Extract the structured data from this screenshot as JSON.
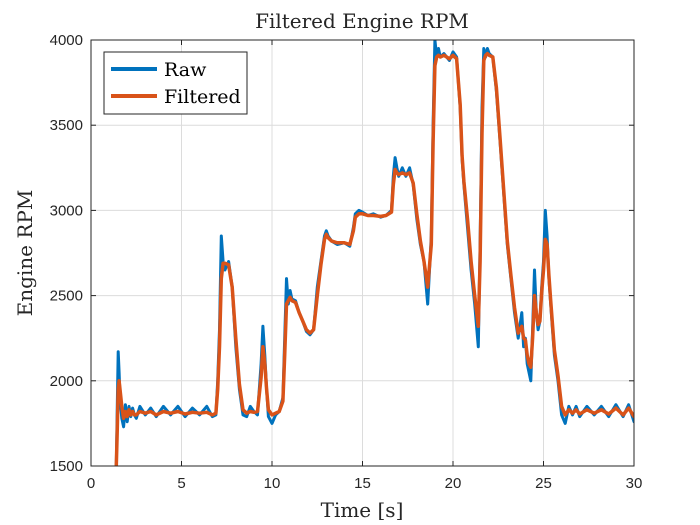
{
  "chart_data": {
    "type": "line",
    "title": "Filtered Engine RPM",
    "xlabel": "Time [s]",
    "ylabel": "Engine RPM",
    "xlim": [
      0,
      30
    ],
    "ylim": [
      1500,
      4000
    ],
    "xticks": [
      0,
      5,
      10,
      15,
      20,
      25,
      30
    ],
    "yticks": [
      1500,
      2000,
      2500,
      3000,
      3500,
      4000
    ],
    "grid": true,
    "legend_position": "top-left",
    "series": [
      {
        "name": "Raw",
        "color": "#0072BD",
        "x": [
          1.4,
          1.45,
          1.5,
          1.55,
          1.6,
          1.7,
          1.8,
          1.9,
          2.0,
          2.1,
          2.2,
          2.3,
          2.4,
          2.5,
          2.7,
          3.0,
          3.3,
          3.6,
          4.0,
          4.4,
          4.8,
          5.2,
          5.6,
          6.0,
          6.4,
          6.7,
          6.9,
          7.0,
          7.1,
          7.2,
          7.3,
          7.4,
          7.6,
          7.8,
          8.0,
          8.2,
          8.4,
          8.6,
          8.8,
          9.0,
          9.2,
          9.4,
          9.5,
          9.6,
          9.7,
          9.8,
          10.0,
          10.2,
          10.4,
          10.6,
          10.7,
          10.8,
          10.9,
          11.0,
          11.1,
          11.3,
          11.5,
          11.7,
          11.9,
          12.1,
          12.3,
          12.5,
          12.7,
          12.9,
          13.0,
          13.1,
          13.3,
          13.6,
          14.0,
          14.3,
          14.5,
          14.6,
          14.8,
          15.0,
          15.3,
          15.6,
          16.0,
          16.3,
          16.6,
          16.7,
          16.8,
          16.9,
          17.0,
          17.2,
          17.4,
          17.6,
          17.8,
          18.0,
          18.2,
          18.4,
          18.6,
          18.8,
          18.9,
          19.0,
          19.1,
          19.2,
          19.3,
          19.5,
          19.8,
          20.0,
          20.2,
          20.4,
          20.5,
          20.6,
          20.8,
          21.0,
          21.2,
          21.4,
          21.5,
          21.6,
          21.7,
          21.8,
          21.9,
          22.0,
          22.2,
          22.4,
          22.6,
          22.8,
          23.0,
          23.2,
          23.4,
          23.6,
          23.8,
          23.9,
          24.0,
          24.1,
          24.2,
          24.3,
          24.4,
          24.5,
          24.6,
          24.7,
          24.8,
          24.9,
          25.0,
          25.1,
          25.2,
          25.3,
          25.4,
          25.5,
          25.6,
          25.8,
          26.0,
          26.2,
          26.4,
          26.6,
          26.8,
          27.0,
          27.4,
          27.8,
          28.2,
          28.6,
          29.0,
          29.4,
          29.7,
          30.0
        ],
        "y": [
          1500,
          1820,
          2170,
          2050,
          1900,
          1780,
          1730,
          1860,
          1760,
          1850,
          1790,
          1840,
          1800,
          1780,
          1850,
          1800,
          1840,
          1790,
          1850,
          1800,
          1850,
          1790,
          1840,
          1800,
          1850,
          1790,
          1800,
          2000,
          2300,
          2850,
          2700,
          2650,
          2700,
          2550,
          2200,
          1950,
          1800,
          1790,
          1850,
          1820,
          1800,
          2100,
          2320,
          2150,
          1950,
          1790,
          1750,
          1800,
          1820,
          1900,
          2250,
          2600,
          2450,
          2530,
          2480,
          2470,
          2400,
          2350,
          2290,
          2270,
          2300,
          2550,
          2700,
          2850,
          2880,
          2850,
          2820,
          2800,
          2810,
          2790,
          2900,
          2980,
          3000,
          2990,
          2970,
          2980,
          2960,
          2970,
          3000,
          3200,
          3310,
          3250,
          3200,
          3250,
          3200,
          3250,
          3150,
          2950,
          2800,
          2700,
          2450,
          2850,
          3500,
          4000,
          3900,
          3950,
          3900,
          3920,
          3880,
          3930,
          3900,
          3600,
          3300,
          3150,
          2900,
          2650,
          2450,
          2200,
          2800,
          3600,
          3950,
          3900,
          3950,
          3920,
          3900,
          3700,
          3400,
          3100,
          2800,
          2600,
          2400,
          2250,
          2400,
          2200,
          2250,
          2100,
          2050,
          2000,
          2300,
          2650,
          2400,
          2300,
          2350,
          2550,
          2700,
          3000,
          2850,
          2600,
          2450,
          2300,
          2150,
          2000,
          1800,
          1750,
          1850,
          1800,
          1850,
          1790,
          1850,
          1800,
          1850,
          1790,
          1860,
          1790,
          1860,
          1760
        ]
      },
      {
        "name": "Filtered",
        "color": "#D95319",
        "x": [
          1.4,
          1.45,
          1.5,
          1.55,
          1.6,
          1.7,
          1.8,
          1.9,
          2.0,
          2.1,
          2.2,
          2.3,
          2.4,
          2.5,
          2.7,
          3.0,
          3.3,
          3.6,
          4.0,
          4.4,
          4.8,
          5.2,
          5.6,
          6.0,
          6.4,
          6.7,
          6.9,
          7.0,
          7.1,
          7.2,
          7.3,
          7.4,
          7.6,
          7.8,
          8.0,
          8.2,
          8.4,
          8.6,
          8.8,
          9.0,
          9.2,
          9.4,
          9.5,
          9.6,
          9.7,
          9.8,
          10.0,
          10.2,
          10.4,
          10.6,
          10.7,
          10.8,
          10.9,
          11.0,
          11.1,
          11.3,
          11.5,
          11.7,
          11.9,
          12.1,
          12.3,
          12.5,
          12.7,
          12.9,
          13.0,
          13.1,
          13.3,
          13.6,
          14.0,
          14.3,
          14.5,
          14.6,
          14.8,
          15.0,
          15.3,
          15.6,
          16.0,
          16.3,
          16.6,
          16.7,
          16.8,
          16.9,
          17.0,
          17.2,
          17.4,
          17.6,
          17.8,
          18.0,
          18.2,
          18.4,
          18.6,
          18.8,
          18.9,
          19.0,
          19.1,
          19.2,
          19.3,
          19.5,
          19.8,
          20.0,
          20.2,
          20.4,
          20.5,
          20.6,
          20.8,
          21.0,
          21.2,
          21.4,
          21.5,
          21.6,
          21.7,
          21.8,
          21.9,
          22.0,
          22.2,
          22.4,
          22.6,
          22.8,
          23.0,
          23.2,
          23.4,
          23.6,
          23.8,
          23.9,
          24.0,
          24.1,
          24.2,
          24.3,
          24.4,
          24.5,
          24.6,
          24.7,
          24.8,
          24.9,
          25.0,
          25.1,
          25.2,
          25.3,
          25.4,
          25.5,
          25.6,
          25.8,
          26.0,
          26.2,
          26.4,
          26.6,
          26.8,
          27.0,
          27.4,
          27.8,
          28.2,
          28.6,
          29.0,
          29.4,
          29.7,
          30.0
        ],
        "y": [
          1500,
          1700,
          1950,
          2000,
          1950,
          1850,
          1780,
          1820,
          1790,
          1830,
          1800,
          1820,
          1800,
          1800,
          1820,
          1810,
          1820,
          1800,
          1820,
          1810,
          1820,
          1805,
          1815,
          1810,
          1815,
          1800,
          1810,
          1950,
          2200,
          2600,
          2690,
          2690,
          2680,
          2550,
          2250,
          1980,
          1830,
          1810,
          1820,
          1815,
          1820,
          2020,
          2200,
          2100,
          1950,
          1830,
          1800,
          1810,
          1820,
          1880,
          2150,
          2450,
          2470,
          2490,
          2470,
          2460,
          2400,
          2350,
          2300,
          2280,
          2300,
          2500,
          2680,
          2830,
          2860,
          2840,
          2820,
          2810,
          2810,
          2800,
          2880,
          2960,
          2980,
          2980,
          2970,
          2970,
          2965,
          2970,
          2990,
          3150,
          3240,
          3220,
          3210,
          3220,
          3210,
          3220,
          3160,
          2980,
          2820,
          2700,
          2550,
          2800,
          3400,
          3850,
          3900,
          3910,
          3900,
          3910,
          3890,
          3910,
          3890,
          3620,
          3320,
          3170,
          2950,
          2700,
          2500,
          2320,
          2700,
          3450,
          3880,
          3910,
          3920,
          3910,
          3900,
          3720,
          3420,
          3120,
          2820,
          2620,
          2430,
          2280,
          2320,
          2250,
          2240,
          2150,
          2100,
          2080,
          2250,
          2500,
          2400,
          2330,
          2350,
          2520,
          2650,
          2830,
          2800,
          2620,
          2470,
          2330,
          2180,
          2030,
          1850,
          1800,
          1830,
          1810,
          1830,
          1805,
          1830,
          1810,
          1830,
          1805,
          1840,
          1800,
          1840,
          1790
        ]
      }
    ]
  }
}
